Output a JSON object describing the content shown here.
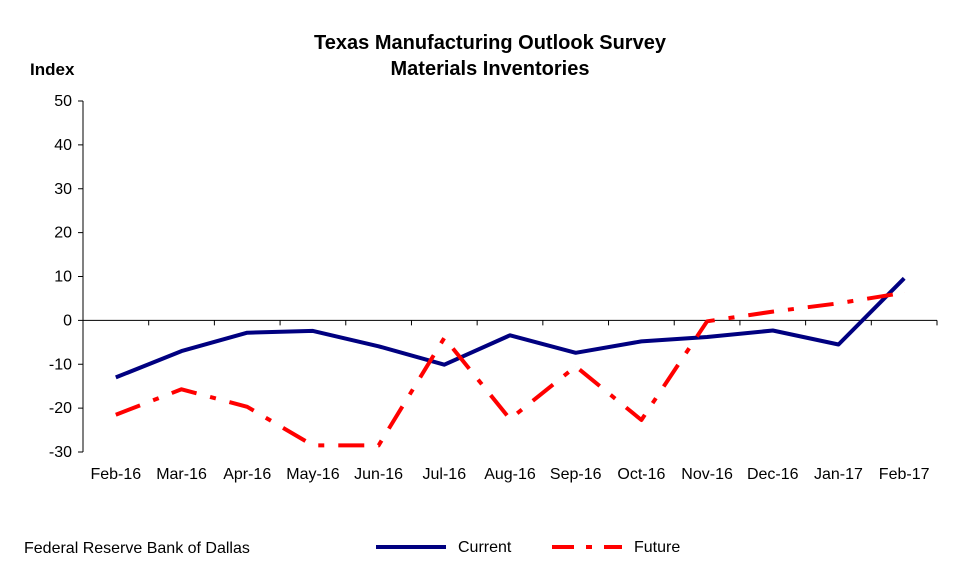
{
  "chart_data": {
    "type": "line",
    "title": "Texas Manufacturing Outlook Survey",
    "subtitle": "Materials Inventories",
    "ylabel": "Index",
    "xlabel": "",
    "ylim": [
      -30,
      50
    ],
    "yticks": [
      50,
      40,
      30,
      20,
      10,
      0,
      -10,
      -20,
      -30
    ],
    "categories": [
      "Feb-16",
      "Mar-16",
      "Apr-16",
      "May-16",
      "Jun-16",
      "Jul-16",
      "Aug-16",
      "Sep-16",
      "Oct-16",
      "Nov-16",
      "Dec-16",
      "Jan-17",
      "Feb-17"
    ],
    "series": [
      {
        "name": "Current",
        "color": "#000080",
        "style": "solid",
        "values": [
          -13.0,
          -7.0,
          -2.8,
          -2.4,
          -5.9,
          -10.1,
          -3.4,
          -7.4,
          -4.8,
          -3.8,
          -2.3,
          -5.5,
          9.6
        ]
      },
      {
        "name": "Future",
        "color": "#ff0000",
        "style": "dash-dot",
        "values": [
          -21.5,
          -15.7,
          -19.7,
          -28.5,
          -28.5,
          -4.0,
          -22.5,
          -10.5,
          -22.7,
          -0.2,
          2.0,
          3.9,
          6.3
        ]
      }
    ],
    "legend_position": "bottom",
    "grid": false
  },
  "footer": {
    "source": "Federal Reserve Bank of Dallas"
  }
}
